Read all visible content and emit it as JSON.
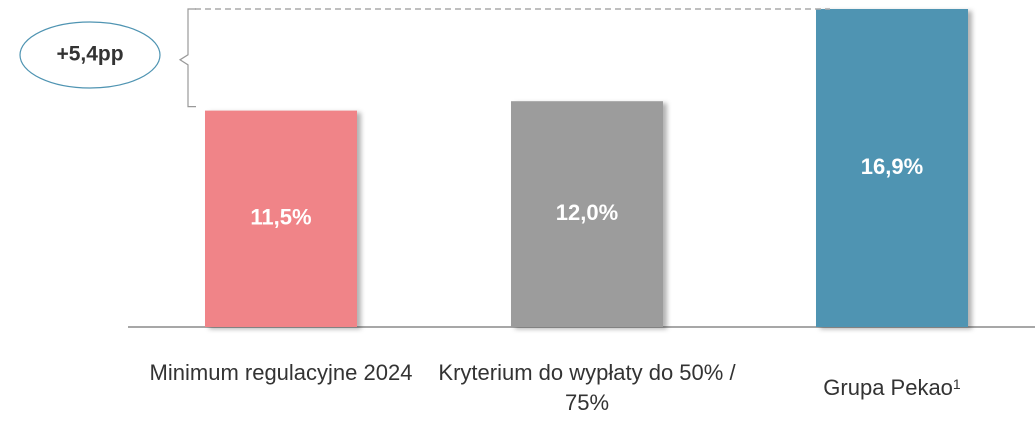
{
  "chart_data": {
    "type": "bar",
    "categories": [
      "Minimum regulacyjne 2024",
      "Kryterium do wypłaty do 50% / 75%",
      "Grupa Pekao"
    ],
    "category_footnotes": [
      null,
      null,
      "1"
    ],
    "values": [
      11.5,
      12.0,
      16.9
    ],
    "value_labels": [
      "11,5%",
      "12,0%",
      "16,9%"
    ],
    "colors": [
      "#f08488",
      "#9c9c9c",
      "#4f94b2"
    ],
    "annotation": "+5,4pp"
  }
}
